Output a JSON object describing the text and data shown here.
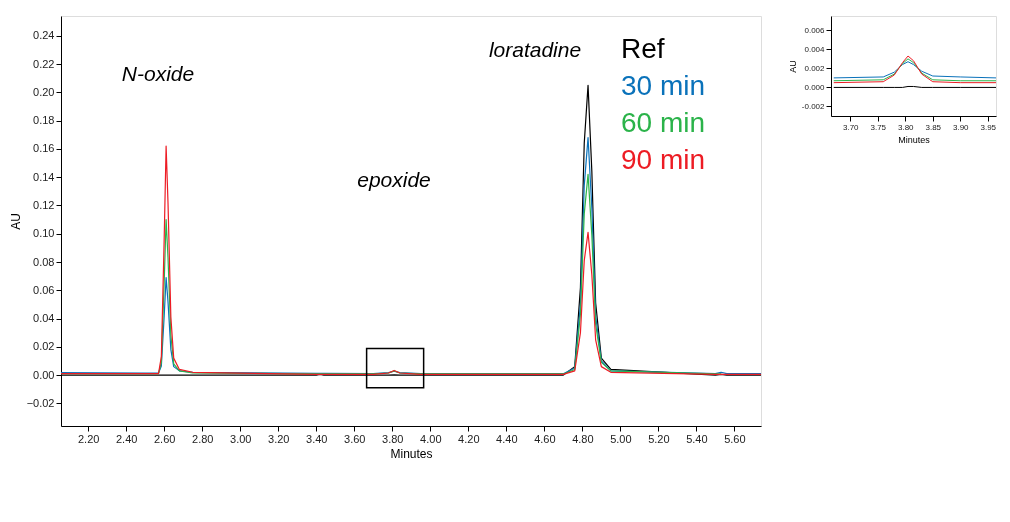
{
  "chart_data": [
    {
      "type": "line",
      "xlabel": "Minutes",
      "ylabel": "AU",
      "x": [
        2.057,
        2.5,
        2.57,
        2.585,
        2.6,
        2.61,
        2.62,
        2.635,
        2.65,
        2.68,
        2.75,
        3.4,
        3.42,
        3.44,
        3.7,
        3.78,
        3.81,
        3.84,
        3.95,
        4.7,
        4.76,
        4.79,
        4.81,
        4.83,
        4.85,
        4.87,
        4.9,
        4.95,
        5.5,
        5.53,
        5.56,
        5.74
      ],
      "series": [
        {
          "name": "Ref",
          "color": "#000000",
          "values": [
            0,
            0,
            0,
            0,
            0,
            0,
            0,
            0,
            0,
            0,
            0,
            0,
            0.0005,
            0,
            0,
            0,
            0.0001,
            0,
            0,
            0,
            0.006,
            0.062,
            0.164,
            0.205,
            0.144,
            0.051,
            0.012,
            0.004,
            0,
            0.0005,
            0,
            0
          ]
        },
        {
          "name": "30 min",
          "color": "#0a72ba",
          "values": [
            0.0018,
            0.0015,
            0.0015,
            0.0065,
            0.042,
            0.069,
            0.052,
            0.018,
            0.006,
            0.003,
            0.002,
            0.0012,
            0.0012,
            0.0012,
            0.001,
            0.0018,
            0.0027,
            0.0018,
            0.0011,
            0.001,
            0.005,
            0.05,
            0.134,
            0.168,
            0.118,
            0.042,
            0.01,
            0.003,
            0.001,
            0.002,
            0.001,
            0.001
          ]
        },
        {
          "name": "60 min",
          "color": "#2bb34a",
          "values": [
            0.001,
            0.001,
            0.001,
            0.009,
            0.066,
            0.11,
            0.083,
            0.028,
            0.008,
            0.003,
            0.0015,
            0.0008,
            0.0008,
            0.0008,
            0.0008,
            0.0015,
            0.003,
            0.0015,
            0.0008,
            0.0008,
            0.004,
            0.043,
            0.114,
            0.142,
            0.099,
            0.036,
            0.009,
            0.003,
            0.0008,
            0.0008,
            null,
            null
          ]
        },
        {
          "name": "90 min",
          "color": "#ed1c24",
          "values": [
            0.001,
            0.001,
            0.001,
            0.013,
            0.097,
            0.162,
            0.122,
            0.041,
            0.012,
            0.004,
            0.002,
            0.0005,
            0.0005,
            0.0005,
            0.0005,
            0.0015,
            0.0033,
            0.0015,
            0.0005,
            0.0005,
            0.003,
            0.03,
            0.081,
            0.101,
            0.071,
            0.025,
            0.006,
            0.002,
            0.0005,
            0.0005,
            0.0005,
            0.0005
          ]
        }
      ],
      "xlim": [
        2.057,
        5.74
      ],
      "ylim": [
        -0.036,
        0.254
      ],
      "xticks": [
        {
          "value": 2.2,
          "label": "2.20"
        },
        {
          "value": 2.4,
          "label": "2.40"
        },
        {
          "value": 2.6,
          "label": "2.60"
        },
        {
          "value": 2.8,
          "label": "2.80"
        },
        {
          "value": 3.0,
          "label": "3.00"
        },
        {
          "value": 3.2,
          "label": "3.20"
        },
        {
          "value": 3.4,
          "label": "3.40"
        },
        {
          "value": 3.6,
          "label": "3.60"
        },
        {
          "value": 3.8,
          "label": "3.80"
        },
        {
          "value": 4.0,
          "label": "4.00"
        },
        {
          "value": 4.2,
          "label": "4.20"
        },
        {
          "value": 4.4,
          "label": "4.40"
        },
        {
          "value": 4.6,
          "label": "4.60"
        },
        {
          "value": 4.8,
          "label": "4.80"
        },
        {
          "value": 5.0,
          "label": "5.00"
        },
        {
          "value": 5.2,
          "label": "5.20"
        },
        {
          "value": 5.4,
          "label": "5.40"
        },
        {
          "value": 5.6,
          "label": "5.60"
        }
      ],
      "yticks": [
        -0.02,
        {
          "value": 0,
          "label": "0.00"
        },
        0.02,
        0.04,
        0.06,
        0.08,
        {
          "value": 0.1,
          "label": "0.10"
        },
        0.12,
        0.14,
        0.16,
        0.18,
        {
          "value": 0.2,
          "label": "0.20"
        },
        0.22,
        0.24
      ],
      "annotations": [
        "N-oxide",
        "epoxide",
        "loratadine"
      ],
      "legend": "top right",
      "grid": false,
      "marker": "none",
      "line_style": "solid"
    },
    {
      "type": "line",
      "xlabel": "Minutes",
      "ylabel": "AU",
      "x": [
        3.67,
        3.76,
        3.78,
        3.795,
        3.805,
        3.815,
        3.83,
        3.85,
        3.9,
        3.965
      ],
      "series": [
        {
          "color": "#000000",
          "values": [
            0,
            0,
            0,
            0,
            0.0001,
            0.0001,
            0,
            0,
            0,
            0
          ]
        },
        {
          "color": "#0a72ba",
          "values": [
            0.001,
            0.0011,
            0.0016,
            0.0024,
            0.0027,
            0.0024,
            0.0017,
            0.0012,
            0.0011,
            0.001
          ]
        },
        {
          "color": "#2bb34a",
          "values": [
            0.0007,
            0.0008,
            0.0014,
            0.0025,
            0.003,
            0.0026,
            0.0015,
            0.0008,
            0.0007,
            0.0007
          ]
        },
        {
          "color": "#ed1c24",
          "values": [
            0.0005,
            0.0006,
            0.0013,
            0.0026,
            0.0033,
            0.0028,
            0.0014,
            0.0006,
            0.0005,
            0.0005
          ]
        }
      ],
      "xlim": [
        3.665,
        3.965
      ],
      "ylim": [
        -0.003,
        0.0075
      ],
      "xticks": [
        {
          "value": 3.7,
          "label": "3.70"
        },
        {
          "value": 3.75,
          "label": "3.75"
        },
        {
          "value": 3.8,
          "label": "3.80"
        },
        {
          "value": 3.85,
          "label": "3.85"
        },
        {
          "value": 3.9,
          "label": "3.90"
        },
        {
          "value": 3.95,
          "label": "3.95"
        }
      ],
      "yticks": [
        {
          "value": -0.002,
          "label": "-0.002"
        },
        {
          "value": 0,
          "label": "0.000"
        },
        {
          "value": 0.002,
          "label": "0.002"
        },
        {
          "value": 0.004,
          "label": "0.004"
        },
        {
          "value": 0.006,
          "label": "0.006"
        }
      ],
      "legend": false,
      "grid": false,
      "marker": "none",
      "line_style": "solid"
    }
  ]
}
